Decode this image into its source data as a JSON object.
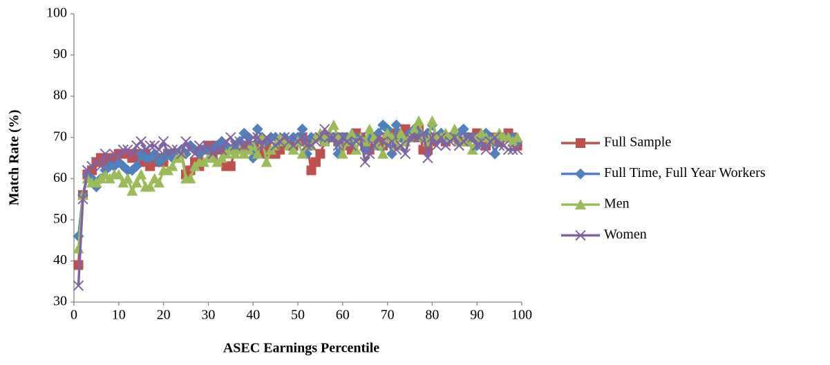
{
  "chart_data": {
    "type": "line",
    "xlabel": "ASEC Earnings Percentile",
    "ylabel": "Match Rate (%)",
    "x": [
      1,
      2,
      3,
      4,
      5,
      6,
      7,
      8,
      9,
      10,
      11,
      12,
      13,
      14,
      15,
      16,
      17,
      18,
      19,
      20,
      21,
      22,
      23,
      24,
      25,
      26,
      27,
      28,
      29,
      30,
      31,
      32,
      33,
      34,
      35,
      36,
      37,
      38,
      39,
      40,
      41,
      42,
      43,
      44,
      45,
      46,
      47,
      48,
      49,
      50,
      51,
      52,
      53,
      54,
      55,
      56,
      57,
      58,
      59,
      60,
      61,
      62,
      63,
      64,
      65,
      66,
      67,
      68,
      69,
      70,
      71,
      72,
      73,
      74,
      75,
      76,
      77,
      78,
      79,
      80,
      81,
      82,
      83,
      84,
      85,
      86,
      87,
      88,
      89,
      90,
      91,
      92,
      93,
      94,
      95,
      96,
      97,
      98,
      99
    ],
    "xlim": [
      0,
      100
    ],
    "xticks": [
      0,
      10,
      20,
      30,
      40,
      50,
      60,
      70,
      80,
      90,
      100
    ],
    "ylim": [
      30,
      100
    ],
    "yticks": [
      30,
      40,
      50,
      60,
      70,
      80,
      90,
      100
    ],
    "grid": false,
    "legend": "right",
    "series": [
      {
        "name": "Full Sample",
        "color": "#c0504d",
        "marker": "square",
        "values": [
          39,
          56,
          61,
          62,
          64,
          65,
          64,
          65,
          65,
          66,
          66,
          66,
          65,
          66,
          64,
          66,
          63,
          64,
          65,
          64,
          66,
          66,
          66,
          66,
          61,
          62,
          64,
          63,
          67,
          68,
          66,
          68,
          67,
          63,
          63,
          67,
          68,
          68,
          68,
          67,
          68,
          66,
          68,
          66,
          66,
          67,
          69,
          68,
          68,
          69,
          70,
          69,
          62,
          64,
          66,
          69,
          70,
          70,
          69,
          70,
          68,
          67,
          71,
          70,
          68,
          67,
          70,
          69,
          68,
          70,
          71,
          70,
          71,
          72,
          71,
          70,
          72,
          67,
          67,
          69,
          70,
          70,
          69,
          70,
          70,
          69,
          69,
          70,
          70,
          71,
          70,
          68,
          69,
          70,
          69,
          70,
          71,
          70,
          68
        ]
      },
      {
        "name": "Full Time, Full Year Workers",
        "color": "#4f81bd",
        "marker": "diamond",
        "values": [
          46,
          56,
          61,
          60,
          58,
          60,
          62,
          63,
          63,
          64,
          63,
          62,
          62,
          63,
          66,
          65,
          65,
          66,
          64,
          65,
          66,
          65,
          66,
          67,
          66,
          68,
          67,
          66,
          67,
          67,
          67,
          68,
          69,
          68,
          67,
          68,
          69,
          71,
          70,
          65,
          72,
          70,
          69,
          70,
          70,
          69,
          70,
          68,
          70,
          70,
          72,
          66,
          70,
          70,
          70,
          69,
          70,
          70,
          66,
          70,
          70,
          69,
          70,
          69,
          67,
          70,
          70,
          71,
          73,
          72,
          66,
          73,
          70,
          69,
          71,
          72,
          71,
          70,
          71,
          73,
          70,
          71,
          69,
          70,
          71,
          71,
          72,
          70,
          70,
          68,
          70,
          71,
          70,
          66,
          70,
          70,
          70,
          70,
          69
        ]
      },
      {
        "name": "Men",
        "color": "#9bbb59",
        "marker": "triangle",
        "values": [
          43,
          56,
          60,
          59,
          59,
          60,
          61,
          60,
          61,
          61,
          59,
          60,
          57,
          59,
          61,
          58,
          58,
          60,
          59,
          62,
          62,
          63,
          65,
          66,
          60,
          60,
          63,
          64,
          64,
          65,
          65,
          64,
          65,
          66,
          67,
          66,
          67,
          66,
          67,
          68,
          66,
          70,
          64,
          67,
          68,
          70,
          69,
          68,
          67,
          69,
          66,
          68,
          68,
          70,
          71,
          69,
          71,
          73,
          70,
          66,
          69,
          71,
          67,
          70,
          69,
          72,
          70,
          68,
          66,
          71,
          70,
          68,
          71,
          69,
          70,
          72,
          74,
          70,
          69,
          74,
          70,
          70,
          71,
          70,
          72,
          69,
          69,
          69,
          67,
          70,
          71,
          70,
          69,
          70,
          71,
          70,
          70,
          69,
          70
        ]
      },
      {
        "name": "Women",
        "color": "#8064a2",
        "marker": "cross",
        "values": [
          34,
          55,
          62,
          63,
          64,
          63,
          66,
          65,
          66,
          65,
          67,
          67,
          66,
          68,
          69,
          67,
          68,
          68,
          67,
          69,
          66,
          67,
          67,
          66,
          69,
          67,
          66,
          68,
          67,
          68,
          66,
          67,
          67,
          69,
          70,
          68,
          69,
          68,
          69,
          70,
          70,
          68,
          70,
          69,
          68,
          69,
          70,
          69,
          68,
          69,
          70,
          68,
          68,
          69,
          70,
          72,
          70,
          70,
          68,
          70,
          69,
          68,
          69,
          70,
          64,
          66,
          68,
          70,
          69,
          68,
          69,
          67,
          68,
          66,
          70,
          70,
          70,
          71,
          65,
          70,
          68,
          70,
          68,
          69,
          70,
          68,
          69,
          70,
          70,
          68,
          69,
          67,
          69,
          70,
          68,
          68,
          67,
          67,
          67
        ]
      }
    ]
  }
}
